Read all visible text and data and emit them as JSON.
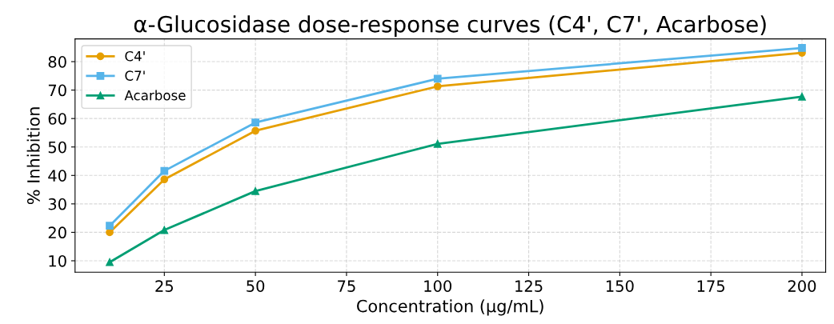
{
  "chart_data": {
    "type": "line",
    "title": "α-Glucosidase dose-response curves (C4', C7', Acarbose)",
    "xlabel": "Concentration (µg/mL)",
    "ylabel": "% Inhibition",
    "x": [
      10,
      25,
      50,
      100,
      200
    ],
    "series": [
      {
        "name": "C4'",
        "color": "#e69f00",
        "marker": "circle",
        "values": [
          20,
          38.6,
          55.7,
          71.3,
          83.1
        ]
      },
      {
        "name": "C7'",
        "color": "#56b4e9",
        "marker": "square",
        "values": [
          22.3,
          41.6,
          58.6,
          74,
          84.8
        ]
      },
      {
        "name": "Acarbose",
        "color": "#009e73",
        "marker": "triangle",
        "values": [
          9.5,
          20.8,
          34.5,
          51.1,
          67.7
        ]
      }
    ],
    "xlim": [
      0.5,
      206.5
    ],
    "xticks": [
      25,
      50,
      75,
      100,
      125,
      150,
      175,
      200
    ],
    "ylim": [
      6,
      88
    ],
    "yticks": [
      10,
      20,
      30,
      40,
      50,
      60,
      70,
      80
    ],
    "grid": true,
    "legend": "top left",
    "line_style": "solid"
  }
}
